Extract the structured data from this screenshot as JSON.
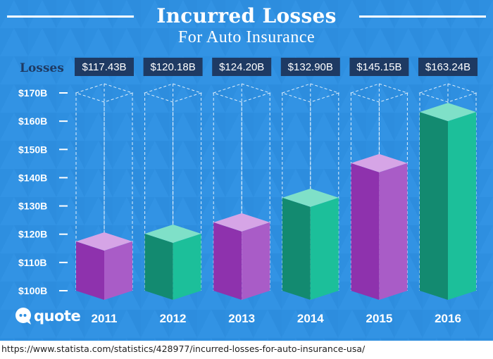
{
  "title": "Incurred Losses",
  "subtitle": "For Auto Insurance",
  "source_url": "https://www.statista.com/statistics/428977/incurred-losses-for-auto-insurance-usa/",
  "logo": {
    "text": "quote",
    "icon": "chat-bubble-icon"
  },
  "colors": {
    "background": "#2e8fe0",
    "label_box": "#1e3a63",
    "purple_front": "#a95cc7",
    "purple_side": "#8e32ad",
    "purple_top": "#d6a5e6",
    "green_front": "#1cbf9a",
    "green_side": "#138a70",
    "green_top": "#7fe0c8"
  },
  "chart_data": {
    "type": "bar",
    "row_label": "Losses",
    "categories": [
      "2011",
      "2012",
      "2013",
      "2014",
      "2015",
      "2016"
    ],
    "values": [
      117.43,
      120.18,
      124.2,
      132.9,
      145.15,
      163.24
    ],
    "value_labels": [
      "$117.43B",
      "$120.18B",
      "$124.20B",
      "$132.90B",
      "$145.15B",
      "$163.24B"
    ],
    "bar_colors": [
      "purple",
      "green",
      "purple",
      "green",
      "purple",
      "green"
    ],
    "ylim": [
      100,
      170
    ],
    "yticks": [
      170,
      160,
      150,
      140,
      130,
      120,
      110,
      100
    ],
    "ytick_labels": [
      "$170B",
      "$160B",
      "$150B",
      "$140B",
      "$130B",
      "$120B",
      "$110B",
      "$100B"
    ],
    "legend": "none",
    "grid": false
  }
}
